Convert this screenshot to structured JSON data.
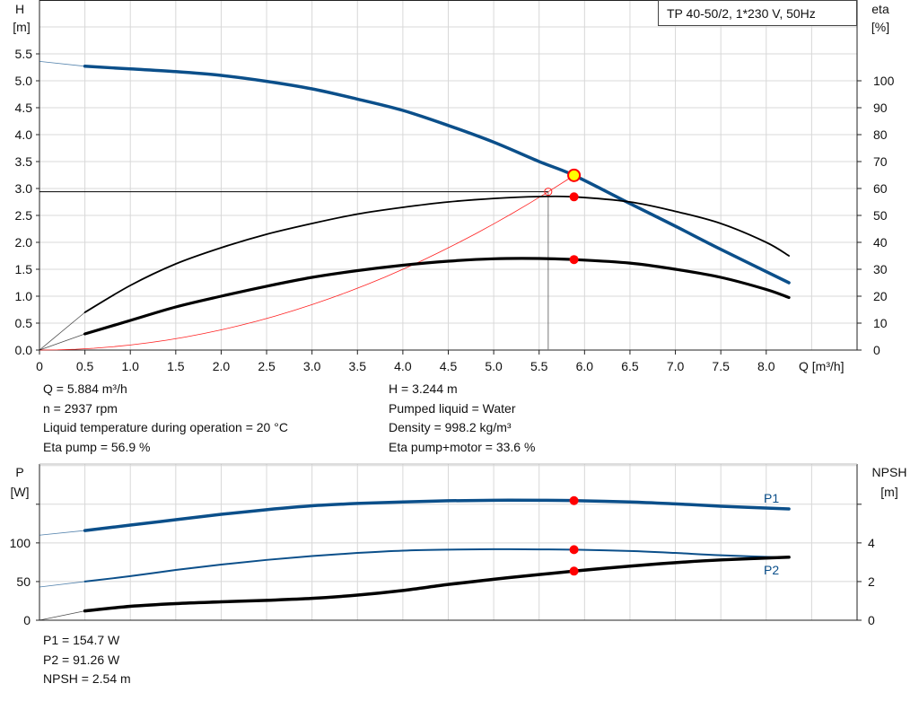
{
  "title_box": "TP 40-50/2, 1*230 V, 50Hz",
  "colors": {
    "head": "#0b4f8a",
    "eta": "#000000",
    "system": "#ff2020",
    "point": "#ff0000",
    "duty_point_fill": "#ffff00",
    "grid": "#d8d8d8"
  },
  "chart_data": [
    {
      "type": "line",
      "x_axis": {
        "label": "Q [m³/h]",
        "range": [
          0,
          9
        ],
        "ticks": [
          "0",
          "0.5",
          "1.0",
          "1.5",
          "2.0",
          "2.5",
          "3.0",
          "3.5",
          "4.0",
          "4.5",
          "5.0",
          "5.5",
          "6.0",
          "6.5",
          "7.0",
          "7.5",
          "8.0"
        ]
      },
      "y_axis_left": {
        "label_top": "H",
        "label_unit": "[m]",
        "range": [
          0,
          6.5
        ],
        "ticks": [
          "0.0",
          "0.5",
          "1.0",
          "1.5",
          "2.0",
          "2.5",
          "3.0",
          "3.5",
          "4.0",
          "4.5",
          "5.0",
          "5.5"
        ]
      },
      "y_axis_right": {
        "label_top": "eta",
        "label_unit": "[%]",
        "range": [
          0,
          130
        ],
        "ticks": [
          "0",
          "10",
          "20",
          "30",
          "40",
          "50",
          "60",
          "70",
          "80",
          "90",
          "100"
        ]
      },
      "grid": true,
      "series": [
        {
          "key": "head",
          "axis": "left",
          "extrapolated": [
            [
              0,
              5.36
            ],
            [
              0.5,
              5.27
            ]
          ],
          "points": [
            [
              0.5,
              5.27
            ],
            [
              1,
              5.22
            ],
            [
              1.5,
              5.17
            ],
            [
              2,
              5.1
            ],
            [
              2.5,
              4.99
            ],
            [
              3,
              4.85
            ],
            [
              3.5,
              4.66
            ],
            [
              4,
              4.45
            ],
            [
              4.5,
              4.17
            ],
            [
              5,
              3.86
            ],
            [
              5.5,
              3.5
            ],
            [
              5.884,
              3.244
            ],
            [
              6.5,
              2.72
            ],
            [
              7,
              2.3
            ],
            [
              7.5,
              1.87
            ],
            [
              8.25,
              1.25
            ]
          ]
        },
        {
          "key": "eta_pump",
          "axis": "right",
          "extrapolated": [
            [
              0,
              0
            ],
            [
              0.5,
              14
            ]
          ],
          "points": [
            [
              0.5,
              14
            ],
            [
              1,
              24
            ],
            [
              1.5,
              32
            ],
            [
              2,
              38
            ],
            [
              2.5,
              43
            ],
            [
              3,
              47
            ],
            [
              3.5,
              50.5
            ],
            [
              4,
              53
            ],
            [
              4.5,
              55
            ],
            [
              5,
              56.3
            ],
            [
              5.5,
              57
            ],
            [
              5.884,
              56.9
            ],
            [
              6.5,
              55
            ],
            [
              7,
              51.5
            ],
            [
              7.5,
              47
            ],
            [
              8,
              40
            ],
            [
              8.25,
              35
            ]
          ]
        },
        {
          "key": "eta_pump_motor",
          "axis": "right",
          "extrapolated": [
            [
              0,
              0
            ],
            [
              0.5,
              6
            ]
          ],
          "points": [
            [
              0.5,
              6
            ],
            [
              1,
              11
            ],
            [
              1.5,
              16
            ],
            [
              2,
              20
            ],
            [
              2.5,
              23.7
            ],
            [
              3,
              27
            ],
            [
              3.5,
              29.5
            ],
            [
              4,
              31.5
            ],
            [
              4.5,
              33
            ],
            [
              5,
              33.9
            ],
            [
              5.5,
              34
            ],
            [
              5.884,
              33.6
            ],
            [
              6.5,
              32.3
            ],
            [
              7,
              30
            ],
            [
              7.5,
              27
            ],
            [
              8,
              22.5
            ],
            [
              8.25,
              19.5
            ]
          ]
        },
        {
          "key": "system",
          "axis": "left",
          "quadratic_through": [
            5.884,
            3.244
          ]
        }
      ],
      "duty_point": {
        "Q": 5.884,
        "H": 3.244,
        "eta_pump": 56.9,
        "eta_pump_motor": 33.6
      },
      "reference_point": {
        "Q": 5.6,
        "H": 2.94
      }
    },
    {
      "type": "line",
      "x_axis": {
        "range": [
          0,
          9
        ]
      },
      "y_axis_left": {
        "label_top": "P",
        "label_unit": "[W]",
        "range": [
          0,
          202
        ],
        "ticks": [
          "0",
          "50",
          "100"
        ]
      },
      "y_axis_right": {
        "label_top": "NPSH",
        "label_unit": "[m]",
        "range": [
          0,
          8.08
        ],
        "ticks": [
          "0",
          "2",
          "4"
        ]
      },
      "grid": true,
      "series": [
        {
          "name": "P1",
          "axis": "left",
          "extrapolated": [
            [
              0,
              110
            ],
            [
              0.5,
              116
            ]
          ],
          "points": [
            [
              0.5,
              116
            ],
            [
              1,
              123
            ],
            [
              1.5,
              130
            ],
            [
              2,
              137
            ],
            [
              2.5,
              143
            ],
            [
              3,
              148
            ],
            [
              3.5,
              151
            ],
            [
              4,
              153
            ],
            [
              4.5,
              154.5
            ],
            [
              5,
              155.2
            ],
            [
              5.5,
              155.1
            ],
            [
              5.884,
              154.7
            ],
            [
              6.5,
              153
            ],
            [
              7,
              150.5
            ],
            [
              7.5,
              147.5
            ],
            [
              8.25,
              144
            ]
          ]
        },
        {
          "name": "P2",
          "axis": "left",
          "extrapolated": [
            [
              0,
              43
            ],
            [
              0.5,
              50
            ]
          ],
          "points": [
            [
              0.5,
              50
            ],
            [
              1,
              57
            ],
            [
              1.5,
              65
            ],
            [
              2,
              72
            ],
            [
              2.5,
              78
            ],
            [
              3,
              83
            ],
            [
              3.5,
              87
            ],
            [
              4,
              90
            ],
            [
              4.5,
              91.3
            ],
            [
              5,
              91.8
            ],
            [
              5.5,
              91.6
            ],
            [
              5.884,
              91.26
            ],
            [
              6.5,
              89.5
            ],
            [
              7,
              87
            ],
            [
              7.5,
              84
            ],
            [
              8.25,
              81
            ]
          ]
        },
        {
          "key": "npsh",
          "axis": "right",
          "extrapolated": [
            [
              0,
              0
            ],
            [
              0.5,
              0.48
            ]
          ],
          "points": [
            [
              0.5,
              0.48
            ],
            [
              1,
              0.72
            ],
            [
              1.5,
              0.86
            ],
            [
              2,
              0.95
            ],
            [
              2.5,
              1.03
            ],
            [
              3,
              1.13
            ],
            [
              3.5,
              1.3
            ],
            [
              4,
              1.54
            ],
            [
              4.5,
              1.85
            ],
            [
              5,
              2.12
            ],
            [
              5.5,
              2.36
            ],
            [
              5.884,
              2.54
            ],
            [
              6.5,
              2.8
            ],
            [
              7,
              2.98
            ],
            [
              7.5,
              3.12
            ],
            [
              8.25,
              3.26
            ]
          ]
        }
      ],
      "duty_point": {
        "P1": 154.7,
        "P2": 91.26,
        "NPSH": 2.54
      }
    }
  ],
  "info_top_left": [
    "Q = 5.884 m³/h",
    "n = 2937 rpm",
    "Liquid temperature during operation = 20 °C",
    "Eta pump = 56.9 %"
  ],
  "info_top_right": [
    "H = 3.244 m",
    "Pumped liquid = Water",
    "Density = 998.2 kg/m³",
    "Eta pump+motor = 33.6 %"
  ],
  "info_bottom": [
    "P1 = 154.7 W",
    "P2 = 91.26 W",
    "NPSH = 2.54 m"
  ]
}
